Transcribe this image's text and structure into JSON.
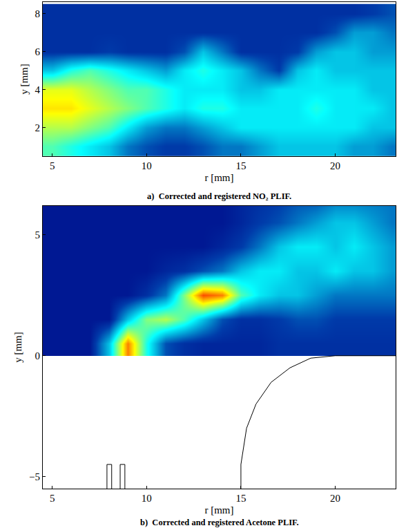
{
  "chart_data": [
    {
      "type": "heatmap",
      "title": "a)  Corrected and registered NO₂ PLIF.",
      "x_label": "r [mm]",
      "y_label": "y [mm]",
      "xlim": [
        4.5,
        23.2
      ],
      "ylim": [
        0.5,
        8.6
      ],
      "xticks": [
        5,
        10,
        15,
        20
      ],
      "yticks": [
        2,
        4,
        6,
        8
      ],
      "color": "Jet",
      "zlim": [
        0,
        1
      ],
      "grid": false,
      "x": [
        5,
        6,
        7,
        8,
        9,
        10,
        11,
        12,
        13,
        14,
        15,
        16,
        17,
        18,
        19,
        20,
        21,
        22,
        23
      ],
      "y": [
        1,
        2,
        3,
        4,
        5,
        6,
        7,
        8
      ],
      "z": [
        [
          0.45,
          0.4,
          0.35,
          0.3,
          0.2,
          0.15,
          0.12,
          0.12,
          0.15,
          0.2,
          0.2,
          0.25,
          0.3,
          0.3,
          0.3,
          0.3,
          0.25,
          0.25,
          0.2
        ],
        [
          0.55,
          0.55,
          0.5,
          0.45,
          0.35,
          0.25,
          0.2,
          0.2,
          0.25,
          0.3,
          0.35,
          0.35,
          0.35,
          0.35,
          0.35,
          0.35,
          0.35,
          0.3,
          0.3
        ],
        [
          0.65,
          0.65,
          0.6,
          0.55,
          0.5,
          0.45,
          0.4,
          0.35,
          0.4,
          0.4,
          0.35,
          0.35,
          0.35,
          0.35,
          0.4,
          0.35,
          0.35,
          0.35,
          0.3
        ],
        [
          0.6,
          0.6,
          0.55,
          0.5,
          0.45,
          0.45,
          0.4,
          0.35,
          0.35,
          0.35,
          0.3,
          0.3,
          0.35,
          0.35,
          0.35,
          0.35,
          0.35,
          0.3,
          0.3
        ],
        [
          0.3,
          0.4,
          0.45,
          0.4,
          0.35,
          0.3,
          0.25,
          0.35,
          0.4,
          0.35,
          0.3,
          0.2,
          0.12,
          0.3,
          0.35,
          0.3,
          0.3,
          0.3,
          0.3
        ],
        [
          0.1,
          0.1,
          0.1,
          0.12,
          0.1,
          0.1,
          0.1,
          0.15,
          0.3,
          0.2,
          0.1,
          0.1,
          0.1,
          0.12,
          0.25,
          0.3,
          0.3,
          0.25,
          0.25
        ],
        [
          0.1,
          0.1,
          0.1,
          0.1,
          0.1,
          0.1,
          0.1,
          0.1,
          0.1,
          0.1,
          0.1,
          0.1,
          0.1,
          0.1,
          0.1,
          0.15,
          0.25,
          0.25,
          0.2
        ],
        [
          0.1,
          0.1,
          0.1,
          0.1,
          0.1,
          0.1,
          0.1,
          0.1,
          0.1,
          0.1,
          0.1,
          0.1,
          0.1,
          0.1,
          0.1,
          0.1,
          0.1,
          0.12,
          0.15
        ]
      ]
    },
    {
      "type": "heatmap",
      "title": "b)  Corrected and registered Acetone PLIF.",
      "x_label": "r [mm]",
      "y_label": "y [mm]",
      "xlim": [
        4.5,
        23.2
      ],
      "ylim": [
        -5.5,
        6.2
      ],
      "xticks": [
        5,
        10,
        15,
        20
      ],
      "yticks": [
        -5,
        0,
        5
      ],
      "color": "Jet",
      "zlim": [
        0,
        1
      ],
      "grid": false,
      "x": [
        5,
        6,
        7,
        8,
        9,
        10,
        11,
        12,
        13,
        14,
        15,
        16,
        17,
        18,
        19,
        20,
        21,
        22,
        23
      ],
      "y": [
        0.5,
        1.5,
        2.5,
        3.5,
        4.5,
        5.5,
        6.5
      ],
      "z": [
        [
          0.05,
          0.05,
          0.05,
          0.3,
          0.75,
          0.4,
          0.15,
          0.1,
          0.08,
          0.08,
          0.08,
          0.08,
          0.1,
          0.1,
          0.1,
          0.1,
          0.1,
          0.1,
          0.1
        ],
        [
          0.05,
          0.05,
          0.05,
          0.05,
          0.3,
          0.5,
          0.55,
          0.45,
          0.3,
          0.15,
          0.1,
          0.1,
          0.12,
          0.15,
          0.15,
          0.12,
          0.12,
          0.12,
          0.12
        ],
        [
          0.05,
          0.05,
          0.05,
          0.05,
          0.05,
          0.1,
          0.2,
          0.5,
          0.8,
          0.75,
          0.45,
          0.35,
          0.3,
          0.3,
          0.25,
          0.2,
          0.2,
          0.2,
          0.2
        ],
        [
          0.05,
          0.05,
          0.05,
          0.05,
          0.05,
          0.05,
          0.08,
          0.1,
          0.15,
          0.2,
          0.3,
          0.35,
          0.35,
          0.3,
          0.3,
          0.35,
          0.3,
          0.3,
          0.25
        ],
        [
          0.05,
          0.05,
          0.05,
          0.05,
          0.05,
          0.05,
          0.05,
          0.05,
          0.05,
          0.08,
          0.12,
          0.2,
          0.3,
          0.35,
          0.35,
          0.3,
          0.35,
          0.3,
          0.25
        ],
        [
          0.05,
          0.05,
          0.05,
          0.05,
          0.05,
          0.05,
          0.05,
          0.05,
          0.05,
          0.05,
          0.08,
          0.12,
          0.15,
          0.2,
          0.25,
          0.3,
          0.3,
          0.25,
          0.2
        ],
        [
          0.05,
          0.05,
          0.05,
          0.05,
          0.05,
          0.05,
          0.05,
          0.05,
          0.05,
          0.05,
          0.08,
          0.1,
          0.12,
          0.15,
          0.15,
          0.2,
          0.2,
          0.2,
          0.2
        ]
      ],
      "outlines": [
        {
          "x": [
            7.9,
            7.9,
            8.15,
            8.15
          ],
          "y": [
            -5.5,
            -4.5,
            -4.5,
            -5.5
          ]
        },
        {
          "x": [
            8.6,
            8.6,
            8.85,
            8.85
          ],
          "y": [
            -5.5,
            -4.5,
            -4.5,
            -5.5
          ]
        },
        {
          "x": [
            15.0,
            15.0,
            15.3,
            15.8,
            16.6,
            17.6,
            18.7,
            20.0,
            23.2
          ],
          "y": [
            -5.5,
            -4.5,
            -3.0,
            -2.0,
            -1.1,
            -0.5,
            -0.1,
            0.0,
            0.0
          ]
        }
      ]
    }
  ]
}
